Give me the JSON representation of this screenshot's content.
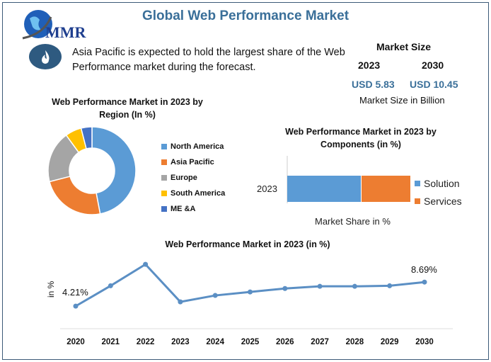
{
  "header": {
    "title": "Global Web Performance Market",
    "logo_text": "MMR"
  },
  "highlight": {
    "icon": "flame-icon",
    "text": "Asia Pacific is expected to hold the largest share of the Web Performance market during the forecast."
  },
  "market_size": {
    "label": "Market Size",
    "year_start": "2023",
    "year_end": "2030",
    "value_start": "USD 5.83",
    "value_end": "USD 10.45",
    "unit_note": "Market Size in Billion"
  },
  "chart_data": [
    {
      "type": "pie",
      "donut": true,
      "title": "Web Performance Market in 2023 by Region (In %)",
      "legend_position": "right",
      "categories": [
        "North America",
        "Asia Pacific",
        "Europe",
        "South America",
        "ME &A"
      ],
      "values": [
        47,
        24,
        19,
        6,
        4
      ],
      "colors": [
        "#5b9bd5",
        "#ed7d31",
        "#a5a5a5",
        "#ffc000",
        "#4472c4"
      ]
    },
    {
      "type": "bar",
      "orientation": "horizontal",
      "stacked": true,
      "title": "Web Performance Market in 2023 by Components (in %)",
      "categories": [
        "2023"
      ],
      "xlabel": "Market Share in %",
      "legend_position": "right",
      "series": [
        {
          "name": "Solution",
          "values": [
            60
          ],
          "color": "#5b9bd5"
        },
        {
          "name": "Services",
          "values": [
            40
          ],
          "color": "#ed7d31"
        }
      ]
    },
    {
      "type": "line",
      "title": "Web Performance Market in 2023 (in %)",
      "ylabel": "in %",
      "grid": false,
      "x": [
        "2020",
        "2021",
        "2022",
        "2023",
        "2024",
        "2025",
        "2026",
        "2027",
        "2028",
        "2029",
        "2030"
      ],
      "values": [
        4.21,
        8.0,
        12.0,
        5.0,
        6.2,
        6.85,
        7.5,
        7.9,
        7.9,
        8.0,
        8.69
      ],
      "data_labels": {
        "first": "4.21%",
        "last": "8.69%"
      },
      "ylim": [
        0,
        14
      ],
      "color": "#5b8fc4"
    }
  ]
}
